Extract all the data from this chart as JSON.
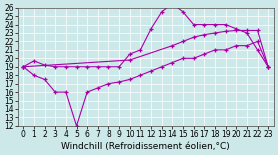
{
  "xlabel": "Windchill (Refroidissement éolien,°C)",
  "xlim": [
    -0.5,
    23.5
  ],
  "ylim": [
    12,
    26
  ],
  "xticks": [
    0,
    1,
    2,
    3,
    4,
    5,
    6,
    7,
    8,
    9,
    10,
    11,
    12,
    13,
    14,
    15,
    16,
    17,
    18,
    19,
    20,
    21,
    22,
    23
  ],
  "yticks": [
    12,
    13,
    14,
    15,
    16,
    17,
    18,
    19,
    20,
    21,
    22,
    23,
    24,
    25,
    26
  ],
  "bg_color": "#cce8e8",
  "line_color": "#aa00aa",
  "line1_x": [
    0,
    1,
    2,
    3,
    4,
    5,
    6,
    7,
    8,
    9,
    10,
    11,
    12,
    13,
    14,
    15,
    16,
    17,
    18,
    19,
    20,
    21,
    22,
    23
  ],
  "line1_y": [
    19.0,
    19.7,
    19.2,
    19.0,
    19.0,
    19.0,
    19.0,
    19.0,
    19.0,
    19.0,
    20.5,
    21.0,
    23.5,
    25.5,
    26.5,
    25.5,
    24.0,
    24.0,
    24.0,
    24.0,
    23.5,
    23.0,
    21.0,
    19.0
  ],
  "line2_x": [
    0,
    10,
    14,
    15,
    16,
    17,
    18,
    19,
    20,
    21,
    22,
    23
  ],
  "line2_y": [
    19.0,
    19.8,
    21.5,
    22.0,
    22.5,
    22.8,
    23.0,
    23.2,
    23.3,
    23.3,
    23.3,
    19.0
  ],
  "line3_x": [
    0,
    1,
    2,
    3,
    4,
    5,
    6,
    7,
    8,
    9,
    10,
    11,
    12,
    13,
    14,
    15,
    16,
    17,
    18,
    19,
    20,
    21,
    22,
    23
  ],
  "line3_y": [
    19.0,
    18.0,
    17.5,
    16.0,
    16.0,
    12.0,
    16.0,
    16.5,
    17.0,
    17.2,
    17.5,
    18.0,
    18.5,
    19.0,
    19.5,
    20.0,
    20.0,
    20.5,
    21.0,
    21.0,
    21.5,
    21.5,
    22.0,
    19.0
  ],
  "font_size": 6,
  "tick_font_size": 5.5,
  "xlabel_fontsize": 6.5
}
